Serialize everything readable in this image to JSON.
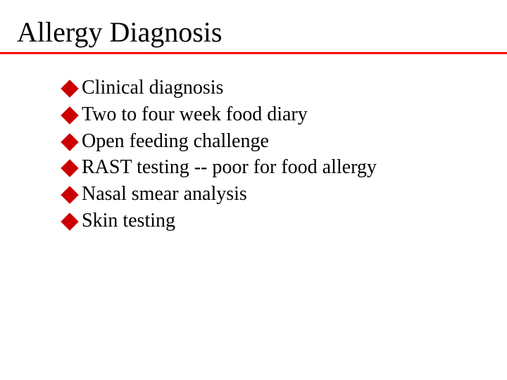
{
  "title": "Allergy Diagnosis",
  "underline_color": "#ff0000",
  "bullet_color": "#cc0000",
  "bullets": [
    "Clinical diagnosis",
    "Two to four week food diary",
    "Open feeding challenge",
    "RAST testing -- poor for food allergy",
    "Nasal smear analysis",
    "Skin testing"
  ]
}
